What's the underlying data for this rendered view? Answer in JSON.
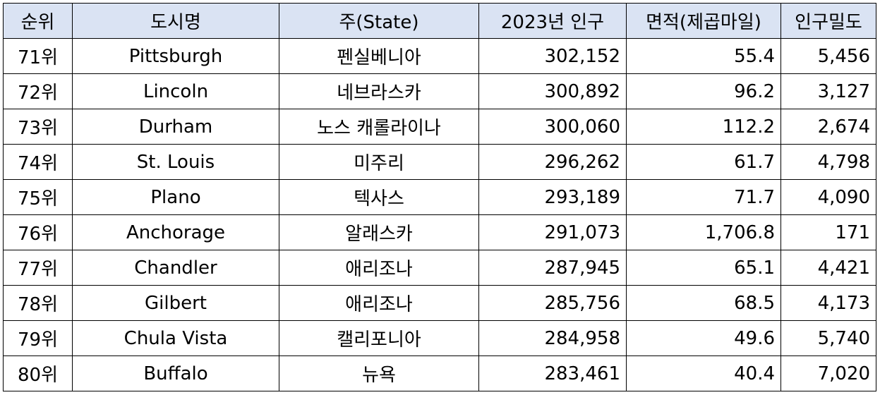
{
  "table": {
    "header_bg": "#dae3f3",
    "headers": [
      "순위",
      "도시명",
      "주(State)",
      "2023년 인구",
      "면적(제곱마일)",
      "인구밀도"
    ],
    "rows": [
      [
        "71위",
        "Pittsburgh",
        "펜실베니아",
        "302,152",
        "55.4",
        "5,456"
      ],
      [
        "72위",
        "Lincoln",
        "네브라스카",
        "300,892",
        "96.2",
        "3,127"
      ],
      [
        "73위",
        "Durham",
        "노스 캐롤라이나",
        "300,060",
        "112.2",
        "2,674"
      ],
      [
        "74위",
        "St. Louis",
        "미주리",
        "296,262",
        "61.7",
        "4,798"
      ],
      [
        "75위",
        "Plano",
        "텍사스",
        "293,189",
        "71.7",
        "4,090"
      ],
      [
        "76위",
        "Anchorage",
        "알래스카",
        "291,073",
        "1,706.8",
        "171"
      ],
      [
        "77위",
        "Chandler",
        "애리조나",
        "287,945",
        "65.1",
        "4,421"
      ],
      [
        "78위",
        "Gilbert",
        "애리조나",
        "285,756",
        "68.5",
        "4,173"
      ],
      [
        "79위",
        "Chula Vista",
        "캘리포니아",
        "284,958",
        "49.6",
        "5,740"
      ],
      [
        "80위",
        "Buffalo",
        "뉴욕",
        "283,461",
        "40.4",
        "7,020"
      ]
    ]
  }
}
